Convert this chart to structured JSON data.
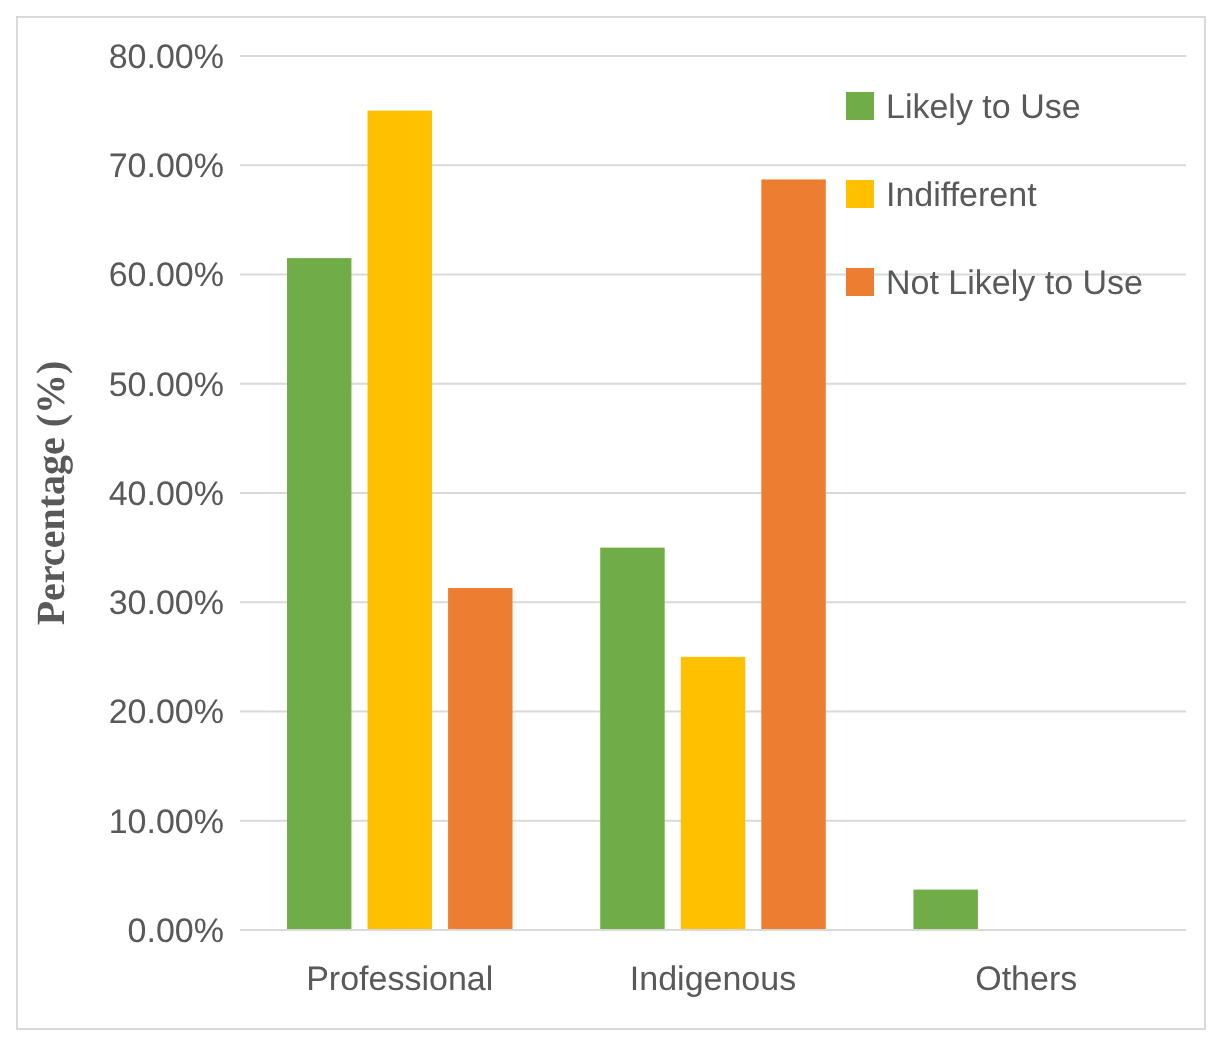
{
  "chart_data": {
    "type": "bar",
    "ylabel": "Percentage (%)",
    "categories": [
      "Professional",
      "Indigenous",
      "Others"
    ],
    "series": [
      {
        "name": "Likely to Use",
        "color": "#70ad47",
        "values": [
          61.5,
          35,
          3.7
        ]
      },
      {
        "name": "Indifferent",
        "color": "#ffc000",
        "values": [
          75,
          25,
          0
        ]
      },
      {
        "name": "Not Likely to Use",
        "color": "#ed7d31",
        "values": [
          31.3,
          68.7,
          0
        ]
      }
    ],
    "ylim": [
      0,
      80
    ],
    "yticks": [
      {
        "value": 0,
        "label": "0.00%"
      },
      {
        "value": 10,
        "label": "10.00%"
      },
      {
        "value": 20,
        "label": "20.00%"
      },
      {
        "value": 30,
        "label": "30.00%"
      },
      {
        "value": 40,
        "label": "40.00%"
      },
      {
        "value": 50,
        "label": "50.00%"
      },
      {
        "value": 60,
        "label": "60.00%"
      },
      {
        "value": 70,
        "label": "70.00%"
      },
      {
        "value": 80,
        "label": "80.00%"
      }
    ],
    "grid": "y",
    "legend": "top right"
  }
}
